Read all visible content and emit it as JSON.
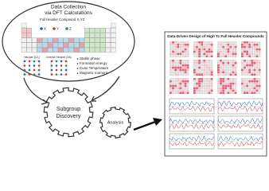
{
  "data_collection": {
    "title_line1": "Data Collection",
    "title_line2": "via DFT Calculations",
    "compound": "Full Heusler Compound X₂YZ",
    "legend": [
      "X",
      "Y",
      "Z"
    ],
    "structures": [
      "Heusler (L2₁)",
      "Inverse Heusler (XA)"
    ],
    "properties": [
      "Stable phase",
      "Formation energy",
      "Curie Temperature",
      "Magnetic moment"
    ]
  },
  "steps": {
    "subgroup": [
      "Subgroup",
      "Discovery"
    ],
    "analysis": "Analysis"
  },
  "result": {
    "title": "Data-Driven Design of High Tc Full Heusler Compounds"
  }
}
